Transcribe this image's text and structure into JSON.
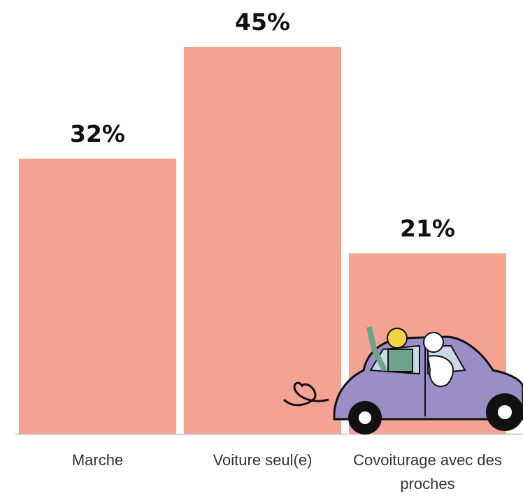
{
  "chart_data": {
    "type": "bar",
    "categories": [
      "Marche",
      "Voiture seul(e)",
      "Covoiturage avec des proches"
    ],
    "values": [
      32,
      45,
      21
    ],
    "value_labels": [
      "32%",
      "45%",
      "21%"
    ],
    "color": "#f4a291"
  }
}
